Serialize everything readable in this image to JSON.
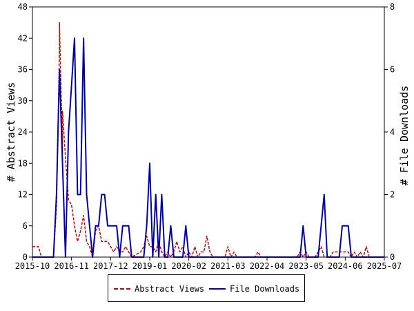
{
  "chart_data": {
    "type": "line",
    "x_axis": {
      "kind": "date",
      "range": [
        "2015-10",
        "2025-07"
      ],
      "tick_labels": [
        "2015-10",
        "2016-11",
        "2017-12",
        "2019-01",
        "2020-02",
        "2021-03",
        "2022-04",
        "2023-05",
        "2024-06",
        "2025-07"
      ]
    },
    "y_left": {
      "label": "# Abstract Views",
      "range": [
        0,
        48
      ],
      "ticks": [
        "0",
        "6",
        "12",
        "18",
        "24",
        "30",
        "36",
        "42",
        "48"
      ]
    },
    "y_right": {
      "label": "# File Downloads",
      "range": [
        0,
        8
      ],
      "ticks": [
        "0",
        "2",
        "4",
        "6",
        "8"
      ]
    },
    "grid": false,
    "legend_placement": "bottom",
    "series": [
      {
        "name": "Abstract Views",
        "axis": "left",
        "color": "#cc0000",
        "line_style": "dashed",
        "points": [
          [
            "2015-10",
            2
          ],
          [
            "2015-12",
            2
          ],
          [
            "2016-01",
            0
          ],
          [
            "2016-05",
            0
          ],
          [
            "2016-06",
            10
          ],
          [
            "2016-07",
            40
          ],
          [
            "2016-07",
            45
          ],
          [
            "2016-08",
            20
          ],
          [
            "2016-08",
            28
          ],
          [
            "2016-09",
            19
          ],
          [
            "2016-10",
            11
          ],
          [
            "2016-11",
            10
          ],
          [
            "2016-12",
            6
          ],
          [
            "2017-01",
            3
          ],
          [
            "2017-02",
            5
          ],
          [
            "2017-03",
            8
          ],
          [
            "2017-04",
            3
          ],
          [
            "2017-05",
            2
          ],
          [
            "2017-06",
            0
          ],
          [
            "2017-07",
            5
          ],
          [
            "2017-08",
            6
          ],
          [
            "2017-09",
            3
          ],
          [
            "2017-10",
            3
          ],
          [
            "2017-11",
            3
          ],
          [
            "2017-12",
            2
          ],
          [
            "2018-01",
            1
          ],
          [
            "2018-02",
            2
          ],
          [
            "2018-03",
            1
          ],
          [
            "2018-04",
            1
          ],
          [
            "2018-05",
            2
          ],
          [
            "2018-06",
            1
          ],
          [
            "2018-07",
            0
          ],
          [
            "2018-10",
            1
          ],
          [
            "2018-11",
            2
          ],
          [
            "2018-12",
            4
          ],
          [
            "2019-01",
            2
          ],
          [
            "2019-02",
            2
          ],
          [
            "2019-03",
            1
          ],
          [
            "2019-04",
            3
          ],
          [
            "2019-05",
            1
          ],
          [
            "2019-06",
            0
          ],
          [
            "2019-07",
            1
          ],
          [
            "2019-08",
            0
          ],
          [
            "2019-09",
            1
          ],
          [
            "2019-10",
            3
          ],
          [
            "2019-11",
            1
          ],
          [
            "2019-12",
            2
          ],
          [
            "2020-01",
            0
          ],
          [
            "2020-02",
            1
          ],
          [
            "2020-03",
            0
          ],
          [
            "2020-04",
            2
          ],
          [
            "2020-05",
            0
          ],
          [
            "2020-06",
            1
          ],
          [
            "2020-07",
            1
          ],
          [
            "2020-08",
            4
          ],
          [
            "2020-09",
            1
          ],
          [
            "2020-10",
            0
          ],
          [
            "2021-02",
            0
          ],
          [
            "2021-03",
            2
          ],
          [
            "2021-04",
            0
          ],
          [
            "2021-05",
            1
          ],
          [
            "2021-06",
            0
          ],
          [
            "2021-12",
            0
          ],
          [
            "2022-01",
            1
          ],
          [
            "2022-02",
            0
          ],
          [
            "2023-02",
            0
          ],
          [
            "2023-03",
            1
          ],
          [
            "2023-04",
            0
          ],
          [
            "2023-05",
            1
          ],
          [
            "2023-06",
            0
          ],
          [
            "2023-08",
            0
          ],
          [
            "2023-09",
            1
          ],
          [
            "2023-10",
            2
          ],
          [
            "2023-11",
            0
          ],
          [
            "2024-01",
            0
          ],
          [
            "2024-02",
            1
          ],
          [
            "2024-07",
            1
          ],
          [
            "2024-08",
            0
          ],
          [
            "2024-09",
            1
          ],
          [
            "2024-10",
            0
          ],
          [
            "2024-11",
            1
          ],
          [
            "2024-12",
            0
          ],
          [
            "2025-01",
            2
          ],
          [
            "2025-02",
            0
          ],
          [
            "2025-07",
            0
          ]
        ]
      },
      {
        "name": "File Downloads",
        "axis": "right",
        "color": "#0000aa",
        "line_style": "solid",
        "points": [
          [
            "2015-10",
            0
          ],
          [
            "2016-05",
            0
          ],
          [
            "2016-06",
            2
          ],
          [
            "2016-07",
            6
          ],
          [
            "2016-08",
            3
          ],
          [
            "2016-09",
            0
          ],
          [
            "2016-10",
            4
          ],
          [
            "2016-11",
            5.5
          ],
          [
            "2016-12",
            7
          ],
          [
            "2017-01",
            2
          ],
          [
            "2017-02",
            2
          ],
          [
            "2017-03",
            7
          ],
          [
            "2017-04",
            2
          ],
          [
            "2017-05",
            1
          ],
          [
            "2017-06",
            0
          ],
          [
            "2017-07",
            1
          ],
          [
            "2017-08",
            1
          ],
          [
            "2017-09",
            2
          ],
          [
            "2017-10",
            2
          ],
          [
            "2017-11",
            1
          ],
          [
            "2018-02",
            1
          ],
          [
            "2018-03",
            0
          ],
          [
            "2018-04",
            1
          ],
          [
            "2018-06",
            1
          ],
          [
            "2018-07",
            0
          ],
          [
            "2018-11",
            0
          ],
          [
            "2018-12",
            1
          ],
          [
            "2019-01",
            3
          ],
          [
            "2019-02",
            0
          ],
          [
            "2019-03",
            2
          ],
          [
            "2019-04",
            0
          ],
          [
            "2019-05",
            2
          ],
          [
            "2019-06",
            0
          ],
          [
            "2019-07",
            0
          ],
          [
            "2019-08",
            1
          ],
          [
            "2019-09",
            0
          ],
          [
            "2019-12",
            0
          ],
          [
            "2020-01",
            1
          ],
          [
            "2020-02",
            0
          ],
          [
            "2023-03",
            0
          ],
          [
            "2023-04",
            1
          ],
          [
            "2023-05",
            0
          ],
          [
            "2023-09",
            0
          ],
          [
            "2023-11",
            2
          ],
          [
            "2023-12",
            0
          ],
          [
            "2024-04",
            0
          ],
          [
            "2024-05",
            1
          ],
          [
            "2024-07",
            1
          ],
          [
            "2024-08",
            0
          ],
          [
            "2025-07",
            0
          ]
        ]
      }
    ]
  }
}
